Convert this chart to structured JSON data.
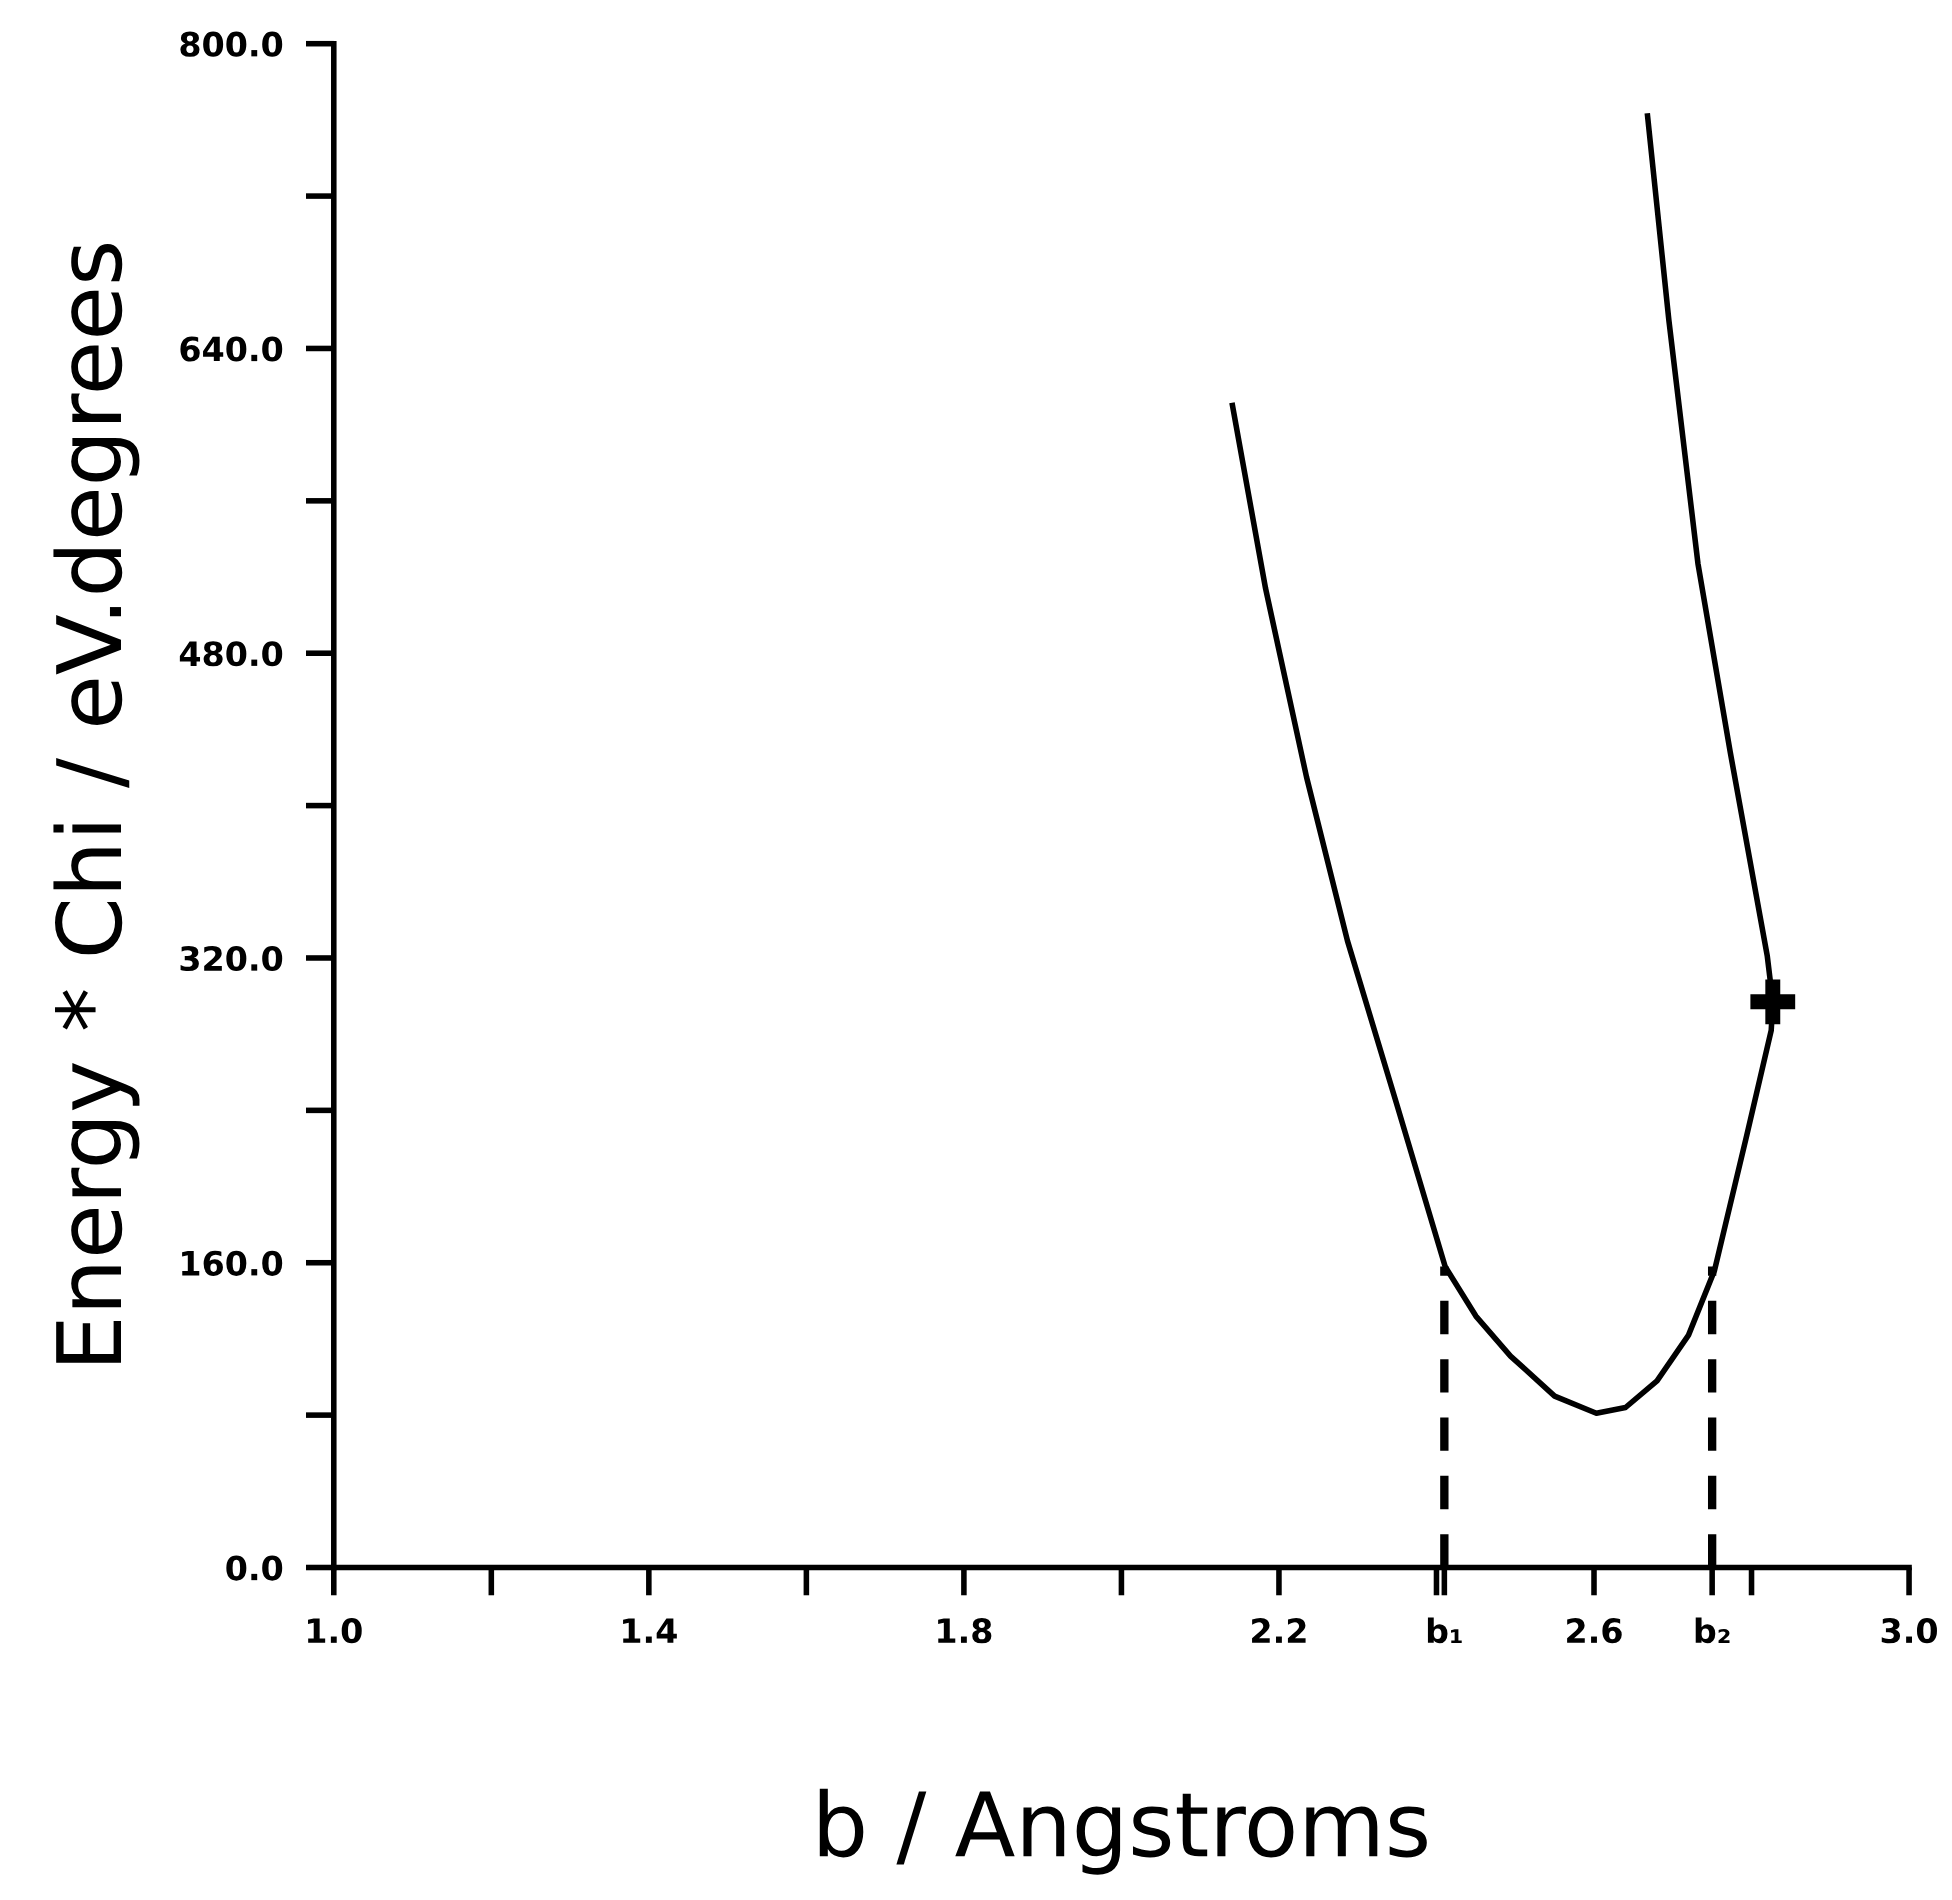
{
  "chart_data": {
    "type": "line",
    "xlabel": "b / Angstroms",
    "ylabel": "Energy * Chi / eV.degrees",
    "xlim": [
      1.0,
      3.0
    ],
    "ylim": [
      0,
      800
    ],
    "xticks": [
      {
        "value": 1.0,
        "label": "1.0"
      },
      {
        "value": 1.2,
        "label": null
      },
      {
        "value": 1.4,
        "label": "1.4"
      },
      {
        "value": 1.6,
        "label": null
      },
      {
        "value": 1.8,
        "label": "1.8"
      },
      {
        "value": 2.0,
        "label": null
      },
      {
        "value": 2.2,
        "label": "2.2"
      },
      {
        "value": 2.4,
        "label": null
      },
      {
        "value": 2.41,
        "label": "b₁"
      },
      {
        "value": 2.6,
        "label": "2.6"
      },
      {
        "value": 2.75,
        "label": "b₂"
      },
      {
        "value": 2.8,
        "label": null
      },
      {
        "value": 3.0,
        "label": "3.0"
      }
    ],
    "yticks": [
      {
        "value": 0,
        "label": "0.0"
      },
      {
        "value": 80,
        "label": null
      },
      {
        "value": 160,
        "label": "160.0"
      },
      {
        "value": 240,
        "label": null
      },
      {
        "value": 320,
        "label": "320.0"
      },
      {
        "value": 400,
        "label": null
      },
      {
        "value": 480,
        "label": "480.0"
      },
      {
        "value": 560,
        "label": null
      },
      {
        "value": 640,
        "label": "640.0"
      },
      {
        "value": 720,
        "label": null
      },
      {
        "value": 800,
        "label": "800.0"
      }
    ],
    "grid": false,
    "series": [
      {
        "color": "#000000",
        "line_style": "solid",
        "x": [
          2.141,
          2.183,
          2.235,
          2.287,
          2.349,
          2.411,
          2.45,
          2.494,
          2.55,
          2.603,
          2.64,
          2.68,
          2.72,
          2.753,
          2.794,
          2.825,
          2.827,
          2.82,
          2.773,
          2.732,
          2.695,
          2.668
        ],
        "values": [
          610,
          514,
          415,
          329,
          244,
          158,
          132,
          111,
          90,
          81,
          84,
          98,
          122,
          156,
          227,
          282,
          297,
          321,
          428,
          527,
          655,
          762
        ]
      },
      {
        "color": "#000000",
        "line_style": "dashed",
        "x": [
          2.41,
          2.41
        ],
        "values": [
          0,
          158
        ]
      },
      {
        "color": "#000000",
        "line_style": "dashed",
        "x": [
          2.75,
          2.75
        ],
        "values": [
          0,
          158
        ]
      },
      {
        "type": "scatter",
        "color": "#000000",
        "marker": "cross",
        "x": [
          2.827
        ],
        "values": [
          297
        ]
      }
    ]
  }
}
